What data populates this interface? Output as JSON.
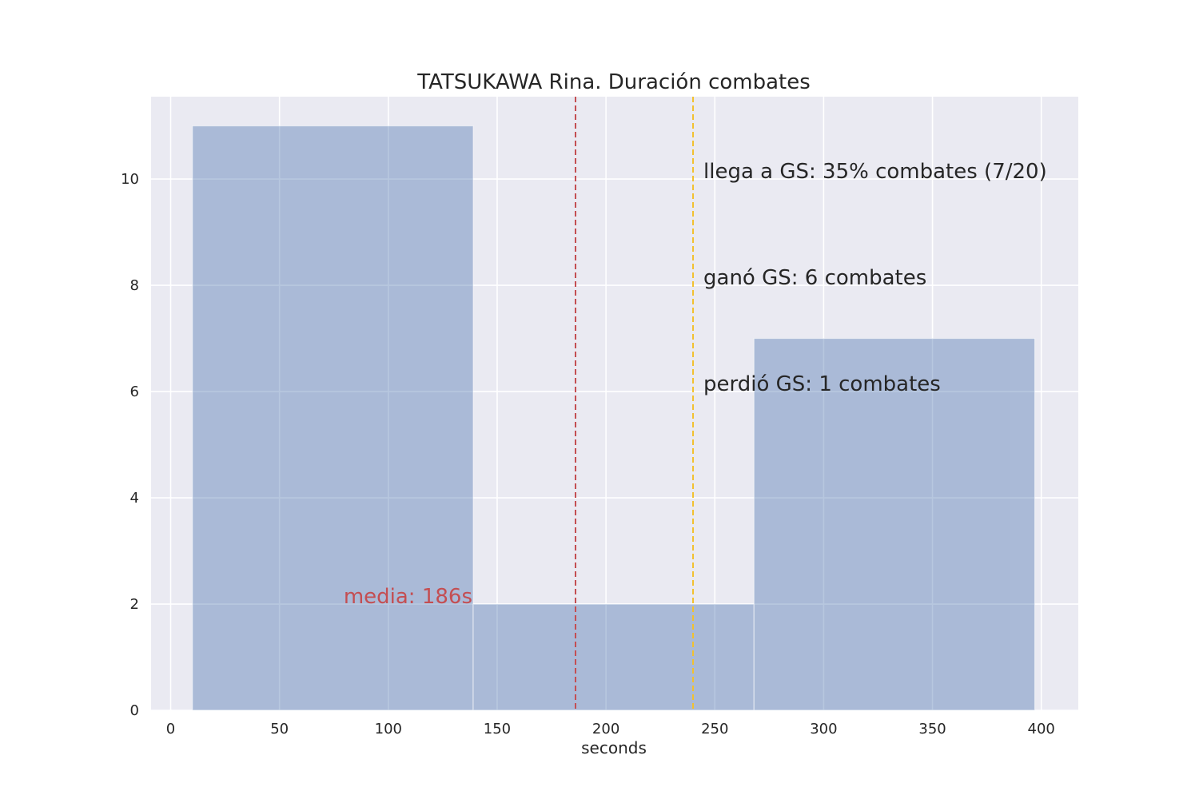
{
  "chart_data": {
    "type": "bar",
    "title": "TATSUKAWA Rina. Duración combates",
    "xlabel": "seconds",
    "ylabel": "",
    "xlim": [
      -9,
      417
    ],
    "ylim": [
      0,
      11.55
    ],
    "xticks": [
      0,
      50,
      100,
      150,
      200,
      250,
      300,
      350,
      400
    ],
    "yticks": [
      0,
      2,
      4,
      6,
      8,
      10
    ],
    "grid": true,
    "bins": [
      {
        "start": 10,
        "end": 139,
        "count": 11
      },
      {
        "start": 139,
        "end": 268,
        "count": 2
      },
      {
        "start": 268,
        "end": 397,
        "count": 7
      }
    ],
    "reference_lines": [
      {
        "name": "mean",
        "x": 186,
        "color": "#c44e52",
        "style": "dashed"
      },
      {
        "name": "golden-score",
        "x": 240,
        "color": "#f2c12e",
        "style": "dashed"
      }
    ],
    "annotations": {
      "mean_label": "media: 186s",
      "reaches_gs": "llega a GS: 35% combates (7/20)",
      "won_gs": "ganó GS: 6 combates",
      "lost_gs": "perdió GS: 1 combates"
    },
    "colors": {
      "bar": "#4c72b0",
      "plot_background": "#eaeaf2",
      "grid": "#ffffff",
      "mean_text": "#c44e52"
    }
  }
}
